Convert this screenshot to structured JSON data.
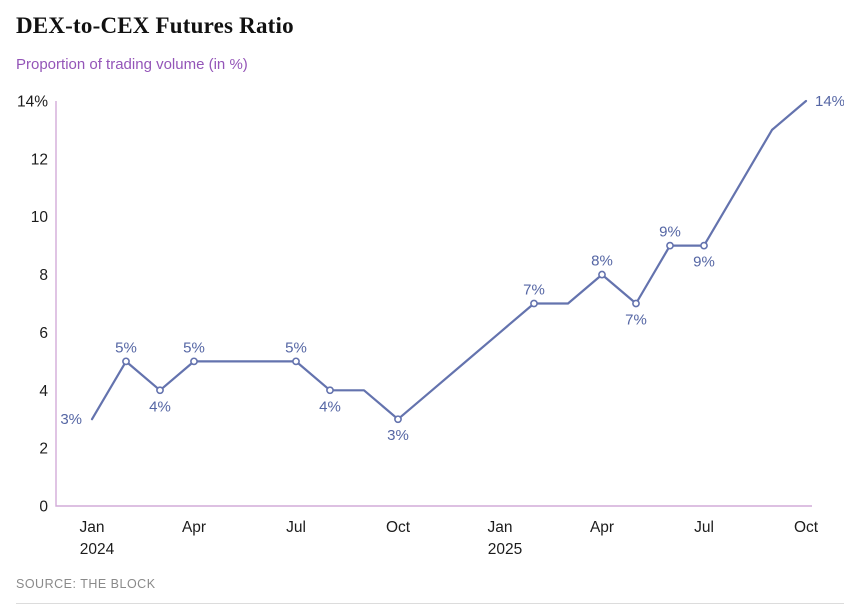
{
  "header": {
    "title": "DEX-to-CEX Futures Ratio",
    "subtitle": "Proportion of trading volume (in %)"
  },
  "source": "SOURCE: THE BLOCK",
  "colors": {
    "line": "#6473ae",
    "point_label": "#5566a4",
    "axis": "#d2abd8",
    "subtitle": "#9455b8",
    "tick_text": "#1c1c1c",
    "source_text": "#8a8a8a"
  },
  "chart_data": {
    "type": "line",
    "title": "DEX-to-CEX Futures Ratio",
    "ylabel": "Proportion of trading volume (in %)",
    "grid": false,
    "legend": "none",
    "ylim": [
      0,
      14
    ],
    "x": [
      "Jan 2024",
      "Feb 2024",
      "Mar 2024",
      "Apr 2024",
      "May 2024",
      "Jun 2024",
      "Jul 2024",
      "Aug 2024",
      "Sep 2024",
      "Oct 2024",
      "Nov 2024",
      "Dec 2024",
      "Jan 2025",
      "Feb 2025",
      "Mar 2025",
      "Apr 2025",
      "May 2025",
      "Jun 2025",
      "Jul 2025",
      "Aug 2025",
      "Sep 2025",
      "Oct 2025"
    ],
    "values": [
      3,
      5,
      4,
      5,
      5,
      5,
      5,
      4,
      4,
      3,
      4,
      5,
      6,
      7,
      7,
      8,
      7,
      9,
      9,
      11,
      13,
      14
    ],
    "yticks": [
      {
        "value": 14,
        "label": "14%"
      },
      {
        "value": 12,
        "label": "12"
      },
      {
        "value": 10,
        "label": "10"
      },
      {
        "value": 8,
        "label": "8"
      },
      {
        "value": 6,
        "label": "6"
      },
      {
        "value": 4,
        "label": "4"
      },
      {
        "value": 2,
        "label": "2"
      },
      {
        "value": 0,
        "label": "0"
      }
    ],
    "xticks": [
      {
        "index": 0,
        "month": "Jan",
        "year": "2024"
      },
      {
        "index": 3,
        "month": "Apr",
        "year": ""
      },
      {
        "index": 6,
        "month": "Jul",
        "year": ""
      },
      {
        "index": 9,
        "month": "Oct",
        "year": ""
      },
      {
        "index": 12,
        "month": "Jan",
        "year": "2025"
      },
      {
        "index": 15,
        "month": "Apr",
        "year": ""
      },
      {
        "index": 18,
        "month": "Jul",
        "year": ""
      },
      {
        "index": 21,
        "month": "Oct",
        "year": ""
      }
    ],
    "point_labels": [
      {
        "index": 0,
        "text": "3%",
        "pos": "left",
        "marker": false
      },
      {
        "index": 1,
        "text": "5%",
        "pos": "above",
        "marker": true
      },
      {
        "index": 2,
        "text": "4%",
        "pos": "below",
        "marker": true
      },
      {
        "index": 3,
        "text": "5%",
        "pos": "above",
        "marker": true
      },
      {
        "index": 6,
        "text": "5%",
        "pos": "above",
        "marker": true
      },
      {
        "index": 7,
        "text": "4%",
        "pos": "below",
        "marker": true
      },
      {
        "index": 9,
        "text": "3%",
        "pos": "below",
        "marker": true
      },
      {
        "index": 13,
        "text": "7%",
        "pos": "above",
        "marker": true
      },
      {
        "index": 15,
        "text": "8%",
        "pos": "above",
        "marker": true
      },
      {
        "index": 16,
        "text": "7%",
        "pos": "below",
        "marker": true
      },
      {
        "index": 17,
        "text": "9%",
        "pos": "above",
        "marker": true
      },
      {
        "index": 18,
        "text": "9%",
        "pos": "below",
        "marker": true
      },
      {
        "index": 21,
        "text": "14%",
        "pos": "right",
        "marker": false
      }
    ]
  }
}
